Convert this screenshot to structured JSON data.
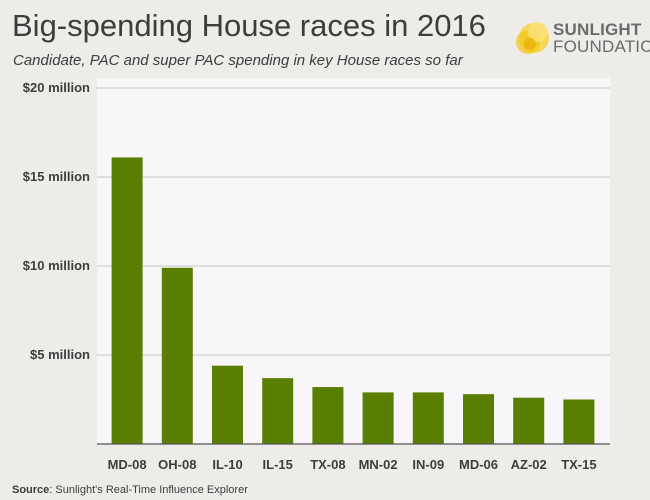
{
  "title": "Big-spending House races in 2016",
  "subtitle": "Candidate, PAC and super PAC spending in key House races so far",
  "logo": {
    "line1": "SUNLIGHT",
    "line2": "FOUNDATION"
  },
  "source": {
    "label": "Source",
    "text": ": Sunlight's Real-Time Influence Explorer"
  },
  "colors": {
    "bar": "#5a7f00",
    "plot_bg": "#f8f6f9",
    "grid": "#c8c8c8",
    "text": "#3d3d3d"
  },
  "chart_data": {
    "type": "bar",
    "categories": [
      "MD-08",
      "OH-08",
      "IL-10",
      "IL-15",
      "TX-08",
      "MN-02",
      "IN-09",
      "MD-06",
      "AZ-02",
      "TX-15"
    ],
    "values": [
      16.1,
      9.9,
      4.4,
      3.7,
      3.2,
      2.9,
      2.9,
      2.8,
      2.6,
      2.5
    ],
    "yticks": [
      5,
      10,
      15,
      20
    ],
    "ytick_labels": [
      "$5 million",
      "$10 million",
      "$15 million",
      "$20 million"
    ],
    "ylim": [
      0,
      20
    ],
    "grid": true,
    "xlabel": "",
    "ylabel": ""
  }
}
